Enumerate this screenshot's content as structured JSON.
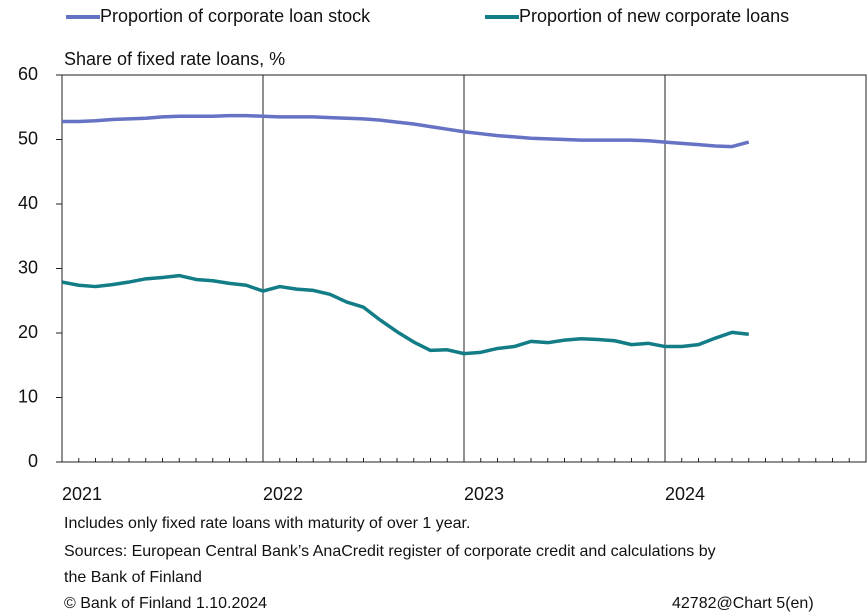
{
  "chart_data": {
    "type": "line",
    "ylabel": "Share of fixed rate loans, %",
    "categories": [
      "2021",
      null,
      null,
      null,
      null,
      null,
      null,
      null,
      null,
      null,
      null,
      null,
      "2022",
      null,
      null,
      null,
      null,
      null,
      null,
      null,
      null,
      null,
      null,
      null,
      "2023",
      null,
      null,
      null,
      null,
      null,
      null,
      null,
      null,
      null,
      null,
      null,
      "2024",
      null,
      null,
      null,
      null,
      null
    ],
    "series": [
      {
        "name": "Proportion of corporate loan stock",
        "color": "#6673c4",
        "values": [
          52.8,
          52.8,
          52.9,
          53.1,
          53.2,
          53.3,
          53.5,
          53.6,
          53.6,
          53.6,
          53.7,
          53.7,
          53.6,
          53.5,
          53.5,
          53.5,
          53.4,
          53.3,
          53.2,
          53.0,
          52.7,
          52.4,
          52.0,
          51.6,
          51.2,
          50.9,
          50.6,
          50.4,
          50.2,
          50.1,
          50.0,
          49.9,
          49.9,
          49.9,
          49.9,
          49.8,
          49.6,
          49.4,
          49.2,
          49.0,
          48.9,
          49.6
        ]
      },
      {
        "name": "Proportion of new corporate loans",
        "color": "#127d86",
        "values": [
          27.9,
          27.4,
          27.2,
          27.5,
          27.9,
          28.4,
          28.6,
          28.9,
          28.3,
          28.1,
          27.7,
          27.4,
          26.5,
          27.2,
          26.8,
          26.6,
          26.0,
          24.8,
          24.0,
          22.0,
          20.2,
          18.6,
          17.3,
          17.4,
          16.8,
          17.0,
          17.6,
          17.9,
          18.7,
          18.5,
          18.9,
          19.1,
          19.0,
          18.8,
          18.2,
          18.4,
          17.9,
          17.9,
          18.2,
          19.2,
          20.1,
          19.8
        ]
      }
    ],
    "ylim": [
      0,
      60
    ],
    "yticks": [
      0,
      10,
      20,
      30,
      40,
      50,
      60
    ],
    "notes": [
      "Includes only fixed rate loans with maturity of over 1 year.",
      "Sources: European Central Bank’s AnaCredit register of corporate credit and calculations by",
      "the Bank of Finland"
    ],
    "copyright": "© Bank of Finland 1.10.2024",
    "chart_id": "42782@Chart 5(en)"
  }
}
